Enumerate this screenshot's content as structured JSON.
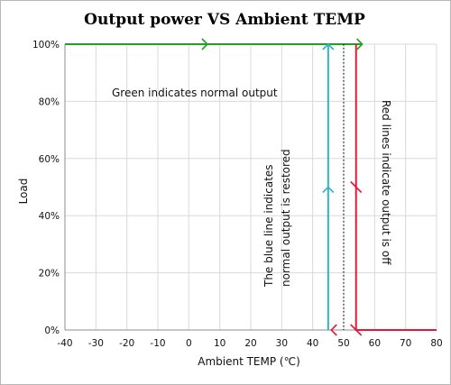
{
  "chart_data": {
    "type": "line",
    "title": "Output power VS Ambient TEMP",
    "xlabel": "Ambient  TEMP (℃)",
    "ylabel": "Load",
    "xlim": [
      -40,
      80
    ],
    "ylim": [
      0,
      100
    ],
    "x_ticks": [
      "-40",
      "-30",
      "-20",
      "-10",
      "0",
      "10",
      "20",
      "30",
      "40",
      "50",
      "60",
      "70",
      "80"
    ],
    "y_ticks": [
      "0%",
      "20%",
      "40%",
      "60%",
      "80%",
      "100%"
    ],
    "grid": true,
    "series": [
      {
        "color": "#22a022",
        "points": [
          [
            -40,
            100
          ],
          [
            56,
            100
          ]
        ]
      },
      {
        "color": "#e31b3b",
        "points": [
          [
            54,
            100
          ],
          [
            54,
            0
          ],
          [
            80,
            0
          ]
        ]
      },
      {
        "color": "#2fb3c8",
        "points": [
          [
            45,
            0
          ],
          [
            45,
            100
          ]
        ]
      },
      {
        "color": "#111111",
        "style": "dotted",
        "points": [
          [
            50,
            100
          ],
          [
            50,
            0
          ]
        ]
      }
    ],
    "annotations": [
      {
        "text": "Green indicates normal output",
        "color": "#111111"
      },
      {
        "text": "Red lines indicate output is off",
        "color": "#111111"
      },
      {
        "text": "The blue line indicates",
        "color": "#111111"
      },
      {
        "text": "normal output is restored",
        "color": "#111111"
      }
    ]
  }
}
